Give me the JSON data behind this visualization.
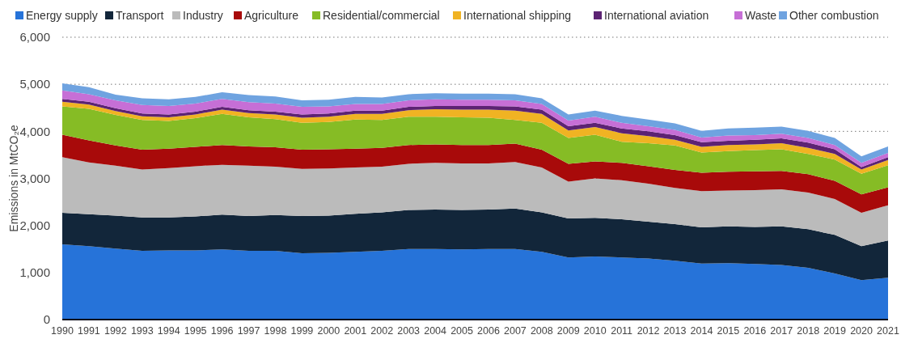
{
  "chart_data": {
    "type": "area",
    "stacked": true,
    "ylabel": "Emissions in MtCO₂e",
    "categories": [
      "1990",
      "1991",
      "1992",
      "1993",
      "1994",
      "1995",
      "1996",
      "1997",
      "1998",
      "1999",
      "2000",
      "2001",
      "2002",
      "2003",
      "2004",
      "2005",
      "2006",
      "2007",
      "2008",
      "2009",
      "2010",
      "2011",
      "2012",
      "2013",
      "2014",
      "2015",
      "2016",
      "2017",
      "2018",
      "2019",
      "2020",
      "2021"
    ],
    "series": [
      {
        "name": "Energy supply",
        "color": "#2673d9",
        "values": [
          1600,
          1560,
          1510,
          1460,
          1470,
          1470,
          1490,
          1460,
          1460,
          1410,
          1420,
          1440,
          1460,
          1500,
          1500,
          1490,
          1500,
          1500,
          1440,
          1320,
          1340,
          1320,
          1300,
          1250,
          1190,
          1200,
          1180,
          1160,
          1100,
          980,
          840,
          890
        ]
      },
      {
        "name": "Transport",
        "color": "#12263a",
        "values": [
          670,
          680,
          700,
          710,
          700,
          720,
          740,
          740,
          760,
          790,
          790,
          810,
          820,
          830,
          840,
          840,
          840,
          860,
          840,
          830,
          820,
          810,
          780,
          780,
          770,
          780,
          790,
          820,
          820,
          820,
          720,
          790
        ]
      },
      {
        "name": "Industry",
        "color": "#bbbbbb",
        "values": [
          1180,
          1100,
          1060,
          1020,
          1050,
          1070,
          1060,
          1070,
          1030,
          1000,
          1000,
          980,
          970,
          980,
          990,
          990,
          980,
          990,
          950,
          780,
          840,
          830,
          810,
          770,
          770,
          760,
          780,
          790,
          780,
          760,
          710,
          750
        ]
      },
      {
        "name": "Agriculture",
        "color": "#a80a0a",
        "values": [
          480,
          470,
          430,
          420,
          410,
          410,
          420,
          410,
          410,
          410,
          410,
          400,
          400,
          400,
          390,
          390,
          390,
          390,
          380,
          380,
          360,
          370,
          370,
          380,
          390,
          400,
          400,
          390,
          390,
          390,
          390,
          380
        ]
      },
      {
        "name": "Residential/commercial",
        "color": "#86bc25",
        "values": [
          600,
          670,
          650,
          630,
          590,
          610,
          660,
          620,
          600,
          570,
          580,
          620,
          590,
          600,
          590,
          590,
          580,
          500,
          570,
          550,
          570,
          450,
          490,
          520,
          430,
          440,
          450,
          460,
          430,
          450,
          440,
          470
        ]
      },
      {
        "name": "International shipping",
        "color": "#f0b323",
        "values": [
          100,
          90,
          80,
          80,
          80,
          80,
          90,
          90,
          100,
          110,
          110,
          120,
          130,
          140,
          160,
          160,
          170,
          200,
          190,
          160,
          160,
          180,
          150,
          120,
          120,
          130,
          120,
          130,
          130,
          120,
          90,
          110
        ]
      },
      {
        "name": "International aviation",
        "color": "#5c2373",
        "values": [
          60,
          60,
          60,
          60,
          60,
          60,
          60,
          60,
          60,
          70,
          70,
          70,
          70,
          70,
          70,
          80,
          80,
          90,
          90,
          90,
          90,
          100,
          100,
          100,
          100,
          90,
          100,
          100,
          110,
          100,
          50,
          60
        ]
      },
      {
        "name": "Waste",
        "color": "#c66fd6",
        "values": [
          180,
          160,
          170,
          180,
          180,
          170,
          170,
          170,
          170,
          160,
          150,
          140,
          140,
          140,
          140,
          130,
          130,
          130,
          120,
          120,
          130,
          120,
          110,
          110,
          100,
          110,
          100,
          100,
          100,
          90,
          90,
          90
        ]
      },
      {
        "name": "Other combustion",
        "color": "#6fa3e0",
        "values": [
          150,
          150,
          120,
          140,
          140,
          140,
          140,
          150,
          150,
          140,
          140,
          150,
          140,
          130,
          130,
          130,
          130,
          130,
          120,
          130,
          130,
          150,
          140,
          140,
          140,
          150,
          160,
          150,
          150,
          150,
          140,
          140
        ]
      }
    ],
    "ylim": [
      0,
      6000
    ],
    "yticks": [
      {
        "value": 0,
        "label": "0"
      },
      {
        "value": 1000,
        "label": "1,000"
      },
      {
        "value": 2000,
        "label": "2,000"
      },
      {
        "value": 3000,
        "label": "3,000"
      },
      {
        "value": 4000,
        "label": "4,000"
      },
      {
        "value": 5000,
        "label": "5,000"
      },
      {
        "value": 6000,
        "label": "6,000"
      }
    ],
    "grid": "y",
    "legend": "top"
  }
}
